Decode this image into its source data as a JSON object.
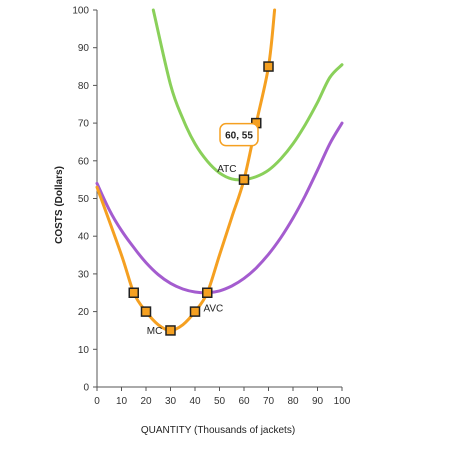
{
  "chart_data": {
    "type": "line",
    "xlabel": "QUANTITY (Thousands of jackets)",
    "ylabel": "COSTS (Dollars)",
    "xlim": [
      0,
      100
    ],
    "ylim": [
      0,
      100
    ],
    "x_ticks": [
      0,
      10,
      20,
      30,
      40,
      50,
      60,
      70,
      80,
      90,
      100
    ],
    "y_ticks": [
      0,
      10,
      20,
      30,
      40,
      50,
      60,
      70,
      80,
      90,
      100
    ],
    "grid": false,
    "series": [
      {
        "name": "MC",
        "color": "#f5a021",
        "x": [
          0,
          10,
          15,
          20,
          25,
          30,
          35,
          40,
          45,
          50,
          55,
          60,
          65,
          70,
          72.5
        ],
        "y": [
          53,
          35,
          25,
          20,
          16.5,
          15,
          16.5,
          20,
          25,
          35,
          45,
          55,
          70,
          85,
          100
        ],
        "markers": [
          {
            "x": 15,
            "y": 25
          },
          {
            "x": 20,
            "y": 20
          },
          {
            "x": 30,
            "y": 15
          },
          {
            "x": 40,
            "y": 20
          },
          {
            "x": 45,
            "y": 25
          },
          {
            "x": 60,
            "y": 55
          },
          {
            "x": 65,
            "y": 70
          },
          {
            "x": 70,
            "y": 85
          }
        ]
      },
      {
        "name": "ATC",
        "color": "#8ad05a",
        "x": [
          23,
          30,
          35,
          40,
          45,
          50,
          55,
          60,
          65,
          70,
          75,
          80,
          85,
          90,
          95,
          100
        ],
        "y": [
          100,
          80.2,
          71.2,
          64.5,
          59.9,
          56.8,
          55.2,
          55,
          55.8,
          57.5,
          60.5,
          64.5,
          69.6,
          75.5,
          82.1,
          85.5
        ]
      },
      {
        "name": "AVC",
        "color": "#a45ccf",
        "x": [
          0,
          5,
          10,
          15,
          20,
          25,
          30,
          35,
          40,
          45,
          50,
          55,
          60,
          65,
          70,
          75,
          80,
          85,
          90,
          95,
          100
        ],
        "y": [
          54,
          47,
          41.5,
          37,
          33,
          29.8,
          27.5,
          26,
          25.2,
          25,
          25.5,
          26.8,
          28.8,
          31.6,
          35.2,
          39.6,
          44.8,
          50.8,
          57.5,
          64.5,
          70
        ]
      }
    ],
    "annotations": [
      {
        "text": "MC",
        "x": 23.5,
        "y": 15
      },
      {
        "text": "AVC",
        "x": 47.5,
        "y": 21
      },
      {
        "text": "ATC",
        "x": 53,
        "y": 58
      },
      {
        "text": "60, 55",
        "x": 60,
        "y": 55
      }
    ]
  },
  "style": {
    "axis_color": "#555555",
    "marker_fill": "#f5a021",
    "marker_stroke": "#222222",
    "tooltip_border": "#f5a021"
  }
}
